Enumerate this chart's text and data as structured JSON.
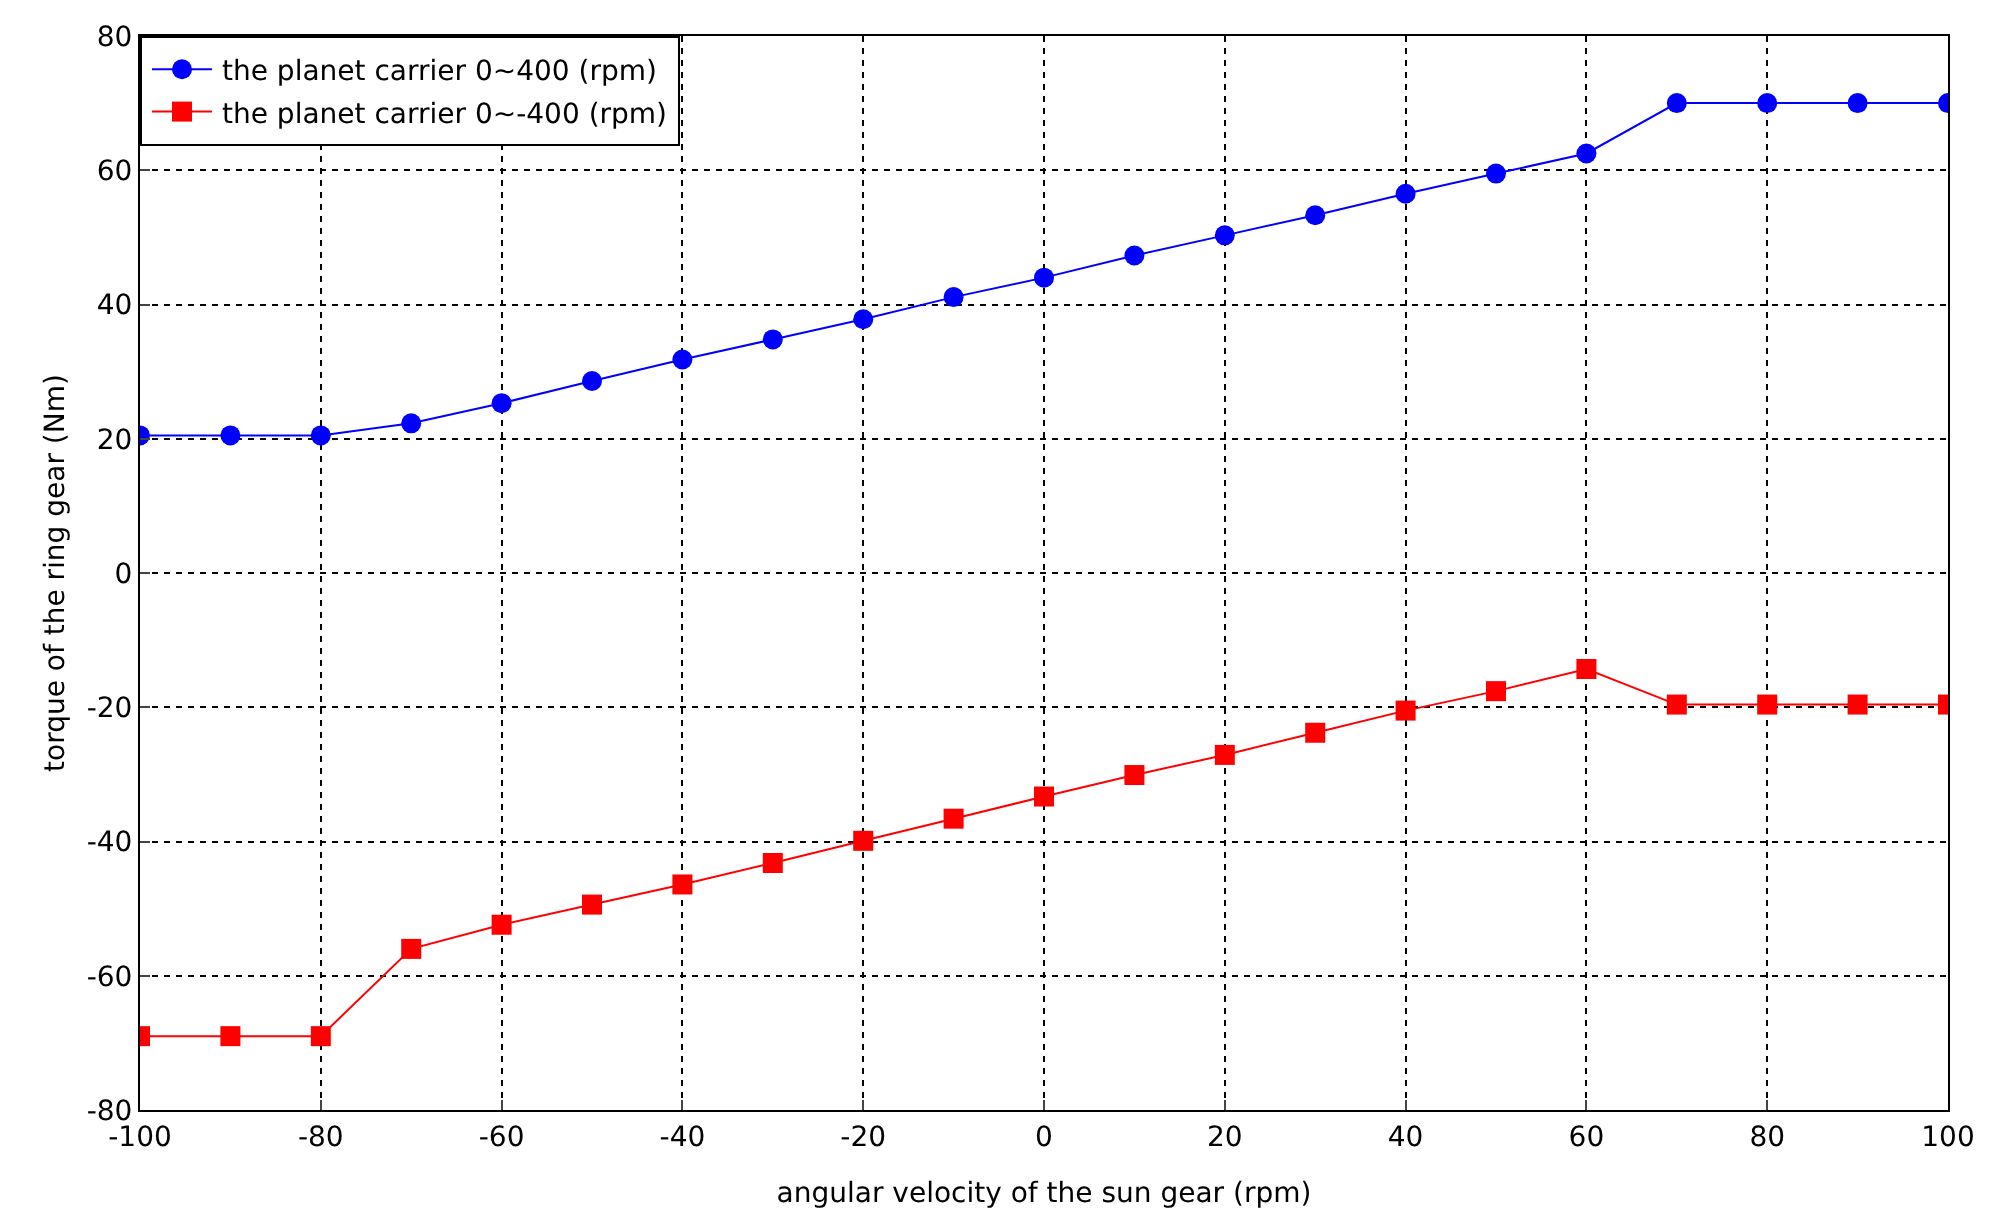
{
  "chart_data": {
    "type": "line",
    "xlabel": "angular velocity of the sun gear (rpm)",
    "ylabel": "torque of the ring gear (Nm)",
    "x": [
      -100,
      -90,
      -80,
      -70,
      -60,
      -50,
      -40,
      -30,
      -20,
      -10,
      0,
      10,
      20,
      30,
      40,
      50,
      60,
      70,
      80,
      90,
      100
    ],
    "xlim": [
      -100,
      100
    ],
    "xticks": [
      -100,
      -80,
      -60,
      -40,
      -20,
      0,
      20,
      40,
      60,
      80,
      100
    ],
    "ylim": [
      -80,
      80
    ],
    "yticks": [
      -80,
      -60,
      -40,
      -20,
      0,
      20,
      40,
      60,
      80
    ],
    "grid": true,
    "legend": "top left",
    "line_style": "solid",
    "series": [
      {
        "name": "the planet carrier 0~400 (rpm)",
        "color": "#0000ff",
        "marker": "circle",
        "values": [
          20.5,
          20.5,
          20.5,
          22.3,
          25.3,
          28.6,
          31.8,
          34.8,
          37.8,
          41.1,
          44,
          47.3,
          50.3,
          53.3,
          56.5,
          59.5,
          62.5,
          70,
          70,
          70,
          70
        ]
      },
      {
        "name": "the planet carrier 0~-400 (rpm)",
        "color": "#ff0000",
        "marker": "square",
        "values": [
          -69,
          -69,
          -69,
          -56,
          -52.4,
          -49.4,
          -46.4,
          -43.2,
          -39.9,
          -36.6,
          -33.3,
          -30.1,
          -27.1,
          -23.8,
          -20.5,
          -17.6,
          -14.3,
          -19.6,
          -19.6,
          -19.6,
          -19.6
        ]
      }
    ]
  }
}
